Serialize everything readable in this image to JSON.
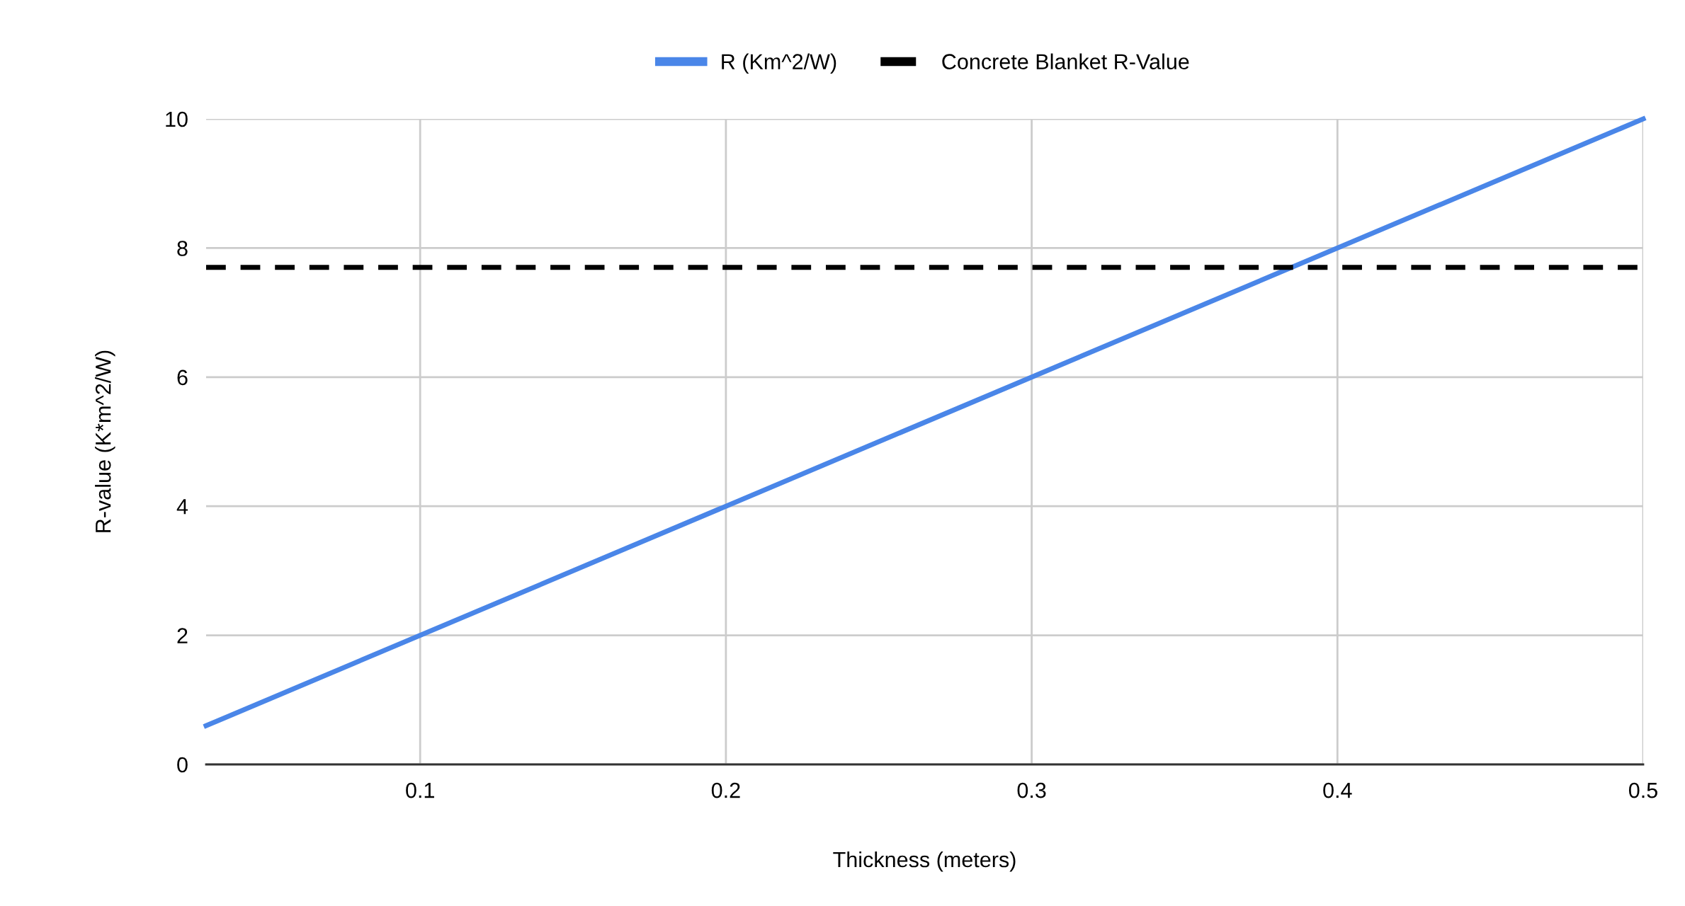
{
  "chart_data": {
    "type": "line",
    "xlabel": "Thickness (meters)",
    "ylabel": "R-value (K*m^2/W)",
    "x": [
      0.03,
      0.5
    ],
    "series": [
      {
        "name": "R (Km^2/W)",
        "color": "#4a86e8",
        "values": [
          0.6,
          10
        ],
        "line_style": "solid"
      },
      {
        "name": "Concrete Blanket R-Value",
        "color": "#000000",
        "values": [
          7.7,
          7.7
        ],
        "line_style": "dashed"
      }
    ],
    "xlim": [
      0.03,
      0.5
    ],
    "xticks": [
      0.1,
      0.2,
      0.3,
      0.4,
      0.5
    ],
    "ylim": [
      0,
      10
    ],
    "yticks": [
      0,
      2,
      4,
      6,
      8,
      10
    ],
    "grid": true,
    "legend": "top",
    "marker": "none"
  }
}
